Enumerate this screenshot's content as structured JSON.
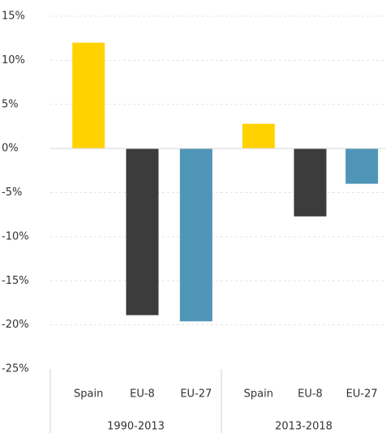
{
  "chart_data": {
    "type": "bar",
    "categories": [
      "1990-2013",
      "2013-2018"
    ],
    "series": [
      {
        "name": "Spain",
        "color": "#ffd200",
        "values": [
          12.0,
          2.8
        ]
      },
      {
        "name": "EU-8",
        "color": "#3c3c3c",
        "values": [
          -18.9,
          -7.7
        ]
      },
      {
        "name": "EU-27",
        "color": "#4f95b8",
        "values": [
          -19.6,
          -4.0
        ]
      }
    ],
    "ylim": [
      -25,
      15
    ],
    "yticks": [
      {
        "value": -25,
        "label": "-25%"
      },
      {
        "value": -20,
        "label": "-20%"
      },
      {
        "value": -15,
        "label": "-15%"
      },
      {
        "value": -10,
        "label": "-10%"
      },
      {
        "value": -5,
        "label": "-5%"
      },
      {
        "value": 0,
        "label": "0%"
      },
      {
        "value": 5,
        "label": "5%"
      },
      {
        "value": 10,
        "label": "10%"
      },
      {
        "value": 15,
        "label": "15%"
      }
    ],
    "grid": true
  }
}
